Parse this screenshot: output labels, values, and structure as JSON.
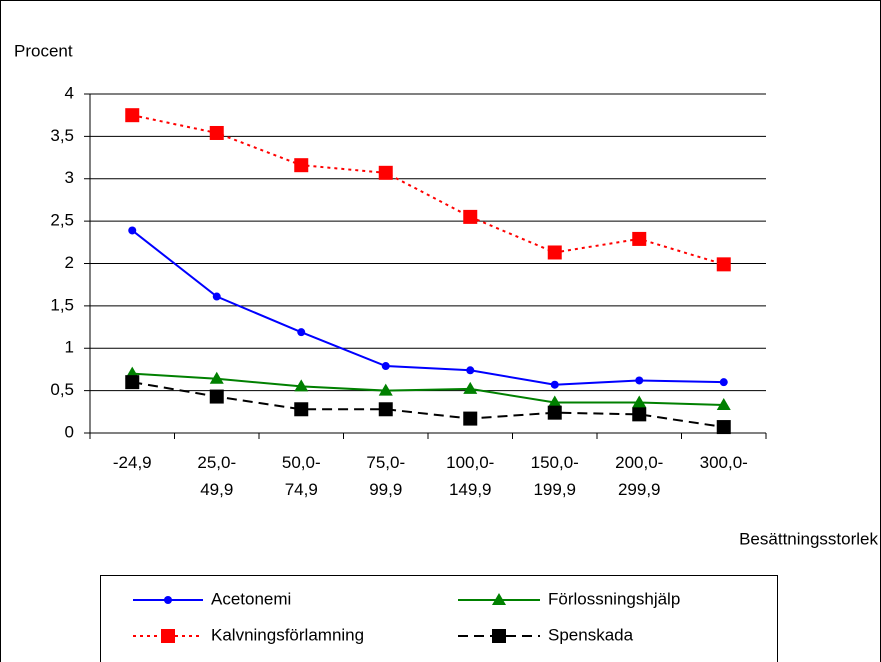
{
  "chart_data": {
    "type": "line",
    "y_label": "Procent",
    "x_label": "Besättningsstorlek",
    "categories": [
      "-24,9",
      "25,0-\n49,9",
      "50,0-\n74,9",
      "75,0-\n99,9",
      "100,0-\n149,9",
      "150,0-\n199,9",
      "200,0-\n299,9",
      "300,0-"
    ],
    "ylim": [
      0,
      4
    ],
    "yticks": [
      0,
      {
        "value": 0.5,
        "label": "0,5"
      },
      1,
      {
        "value": 1.5,
        "label": "1,5"
      },
      2,
      {
        "value": 2.5,
        "label": "2,5"
      },
      3,
      {
        "value": 3.5,
        "label": "3,5"
      },
      4
    ],
    "grid": true,
    "series": [
      {
        "name": "Acetonemi",
        "color": "#0000ff",
        "line_style": "solid",
        "marker": "circle",
        "values": [
          2.39,
          1.61,
          1.19,
          0.79,
          0.74,
          0.57,
          0.62,
          0.6
        ]
      },
      {
        "name": "Förlossningshjälp",
        "color": "#008000",
        "line_style": "solid",
        "marker": "triangle",
        "values": [
          0.7,
          0.64,
          0.55,
          0.5,
          0.52,
          0.36,
          0.36,
          0.33
        ]
      },
      {
        "name": "Kalvningsförlamning",
        "color": "#ff0000",
        "line_style": "dotted",
        "marker": "square",
        "values": [
          3.75,
          3.54,
          3.16,
          3.07,
          2.55,
          2.13,
          2.29,
          1.99
        ]
      },
      {
        "name": "Spenskada",
        "color": "#000000",
        "line_style": "dashed",
        "marker": "square",
        "values": [
          0.6,
          0.43,
          0.28,
          0.28,
          0.17,
          0.24,
          0.22,
          0.07
        ]
      }
    ]
  }
}
